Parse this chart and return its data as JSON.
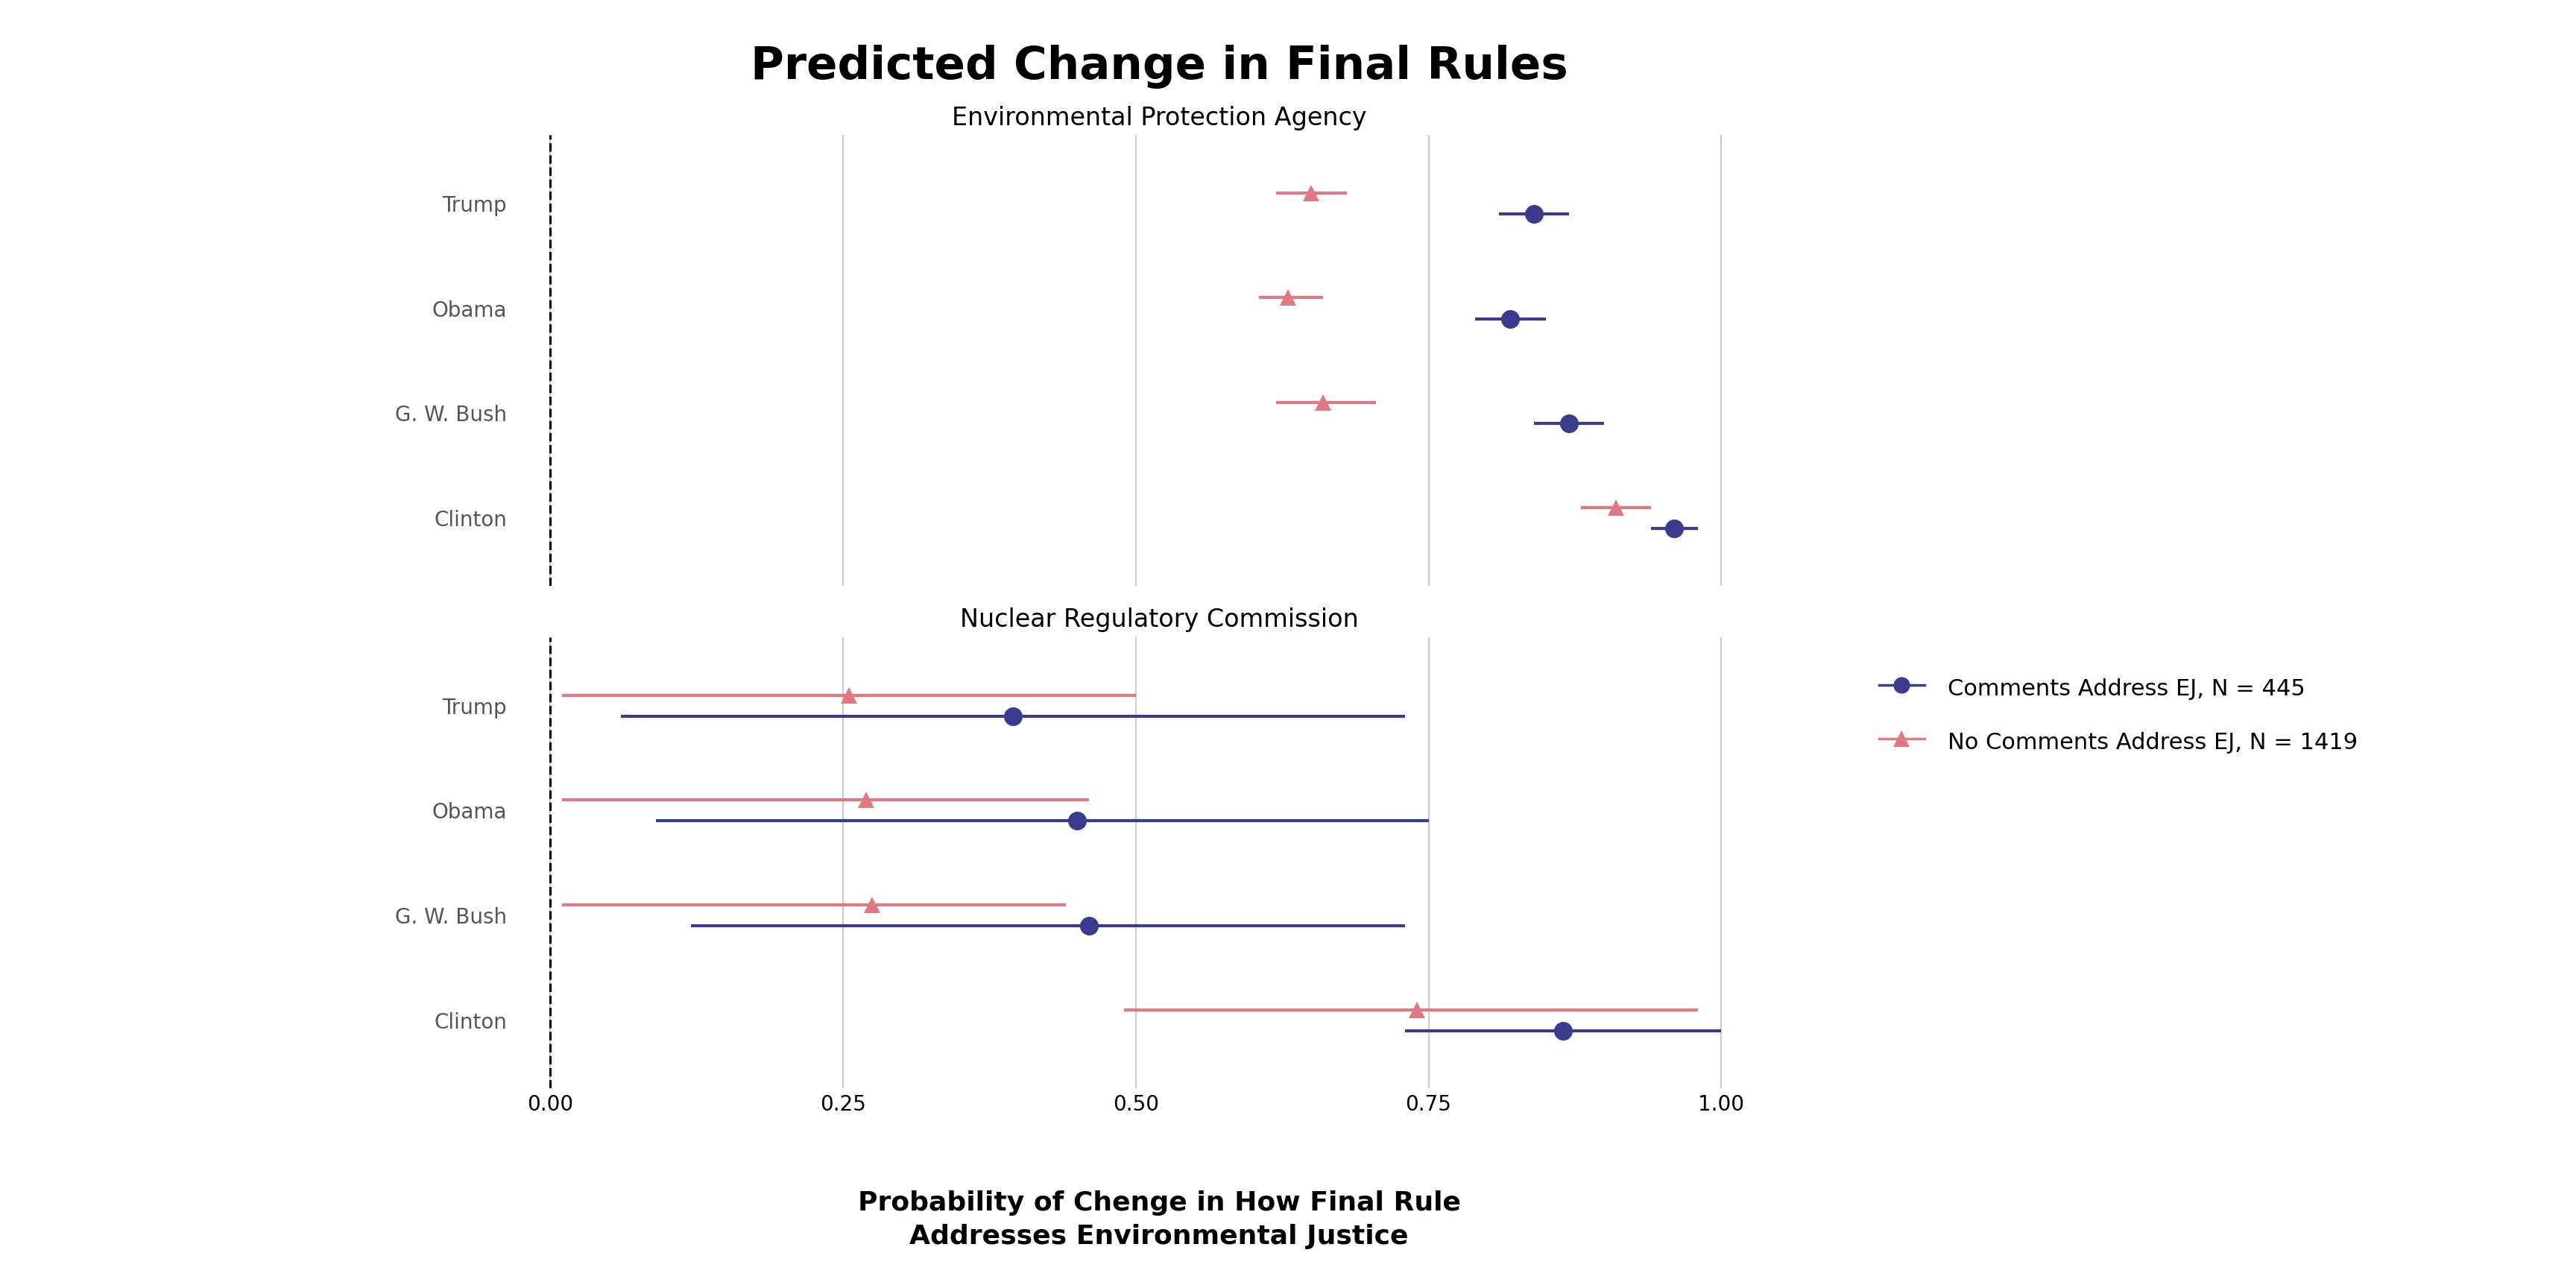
{
  "title": "Predicted Change in Final Rules",
  "xlabel_line1": "Probability of Chenge in How Final Rule",
  "xlabel_line2": "Addresses Environmental Justice",
  "panel1_title": "Environmental Protection Agency",
  "panel2_title": "Nuclear Regulatory Commission",
  "presidents": [
    "Trump",
    "Obama",
    "G. W. Bush",
    "Clinton"
  ],
  "epa": {
    "blue_vals": [
      0.84,
      0.82,
      0.87,
      0.96
    ],
    "blue_lo": [
      0.81,
      0.79,
      0.84,
      0.94
    ],
    "blue_hi": [
      0.87,
      0.85,
      0.9,
      0.98
    ],
    "pink_vals": [
      0.65,
      0.63,
      0.66,
      0.91
    ],
    "pink_lo": [
      0.62,
      0.605,
      0.62,
      0.88
    ],
    "pink_hi": [
      0.68,
      0.66,
      0.705,
      0.94
    ]
  },
  "nrc": {
    "blue_vals": [
      0.395,
      0.45,
      0.46,
      0.865
    ],
    "blue_lo": [
      0.06,
      0.09,
      0.12,
      0.73
    ],
    "blue_hi": [
      0.73,
      0.75,
      0.73,
      1.0
    ],
    "pink_vals": [
      0.255,
      0.27,
      0.275,
      0.74
    ],
    "pink_lo": [
      0.01,
      0.01,
      0.01,
      0.49
    ],
    "pink_hi": [
      0.5,
      0.46,
      0.44,
      0.98
    ]
  },
  "xlim": [
    -0.03,
    1.07
  ],
  "xticks": [
    0.0,
    0.25,
    0.5,
    0.75,
    1.0
  ],
  "xticklabels": [
    "0.00",
    "0.25",
    "0.50",
    "0.75",
    "1.00"
  ],
  "blue_color": "#3B3B8E",
  "pink_color": "#E07A82",
  "legend_blue_label": "Comments Address EJ, N = 445",
  "legend_pink_label": "No Comments Address EJ, N = 1419",
  "bg_color": "#FFFFFF",
  "grid_color": "#CCCCCC"
}
